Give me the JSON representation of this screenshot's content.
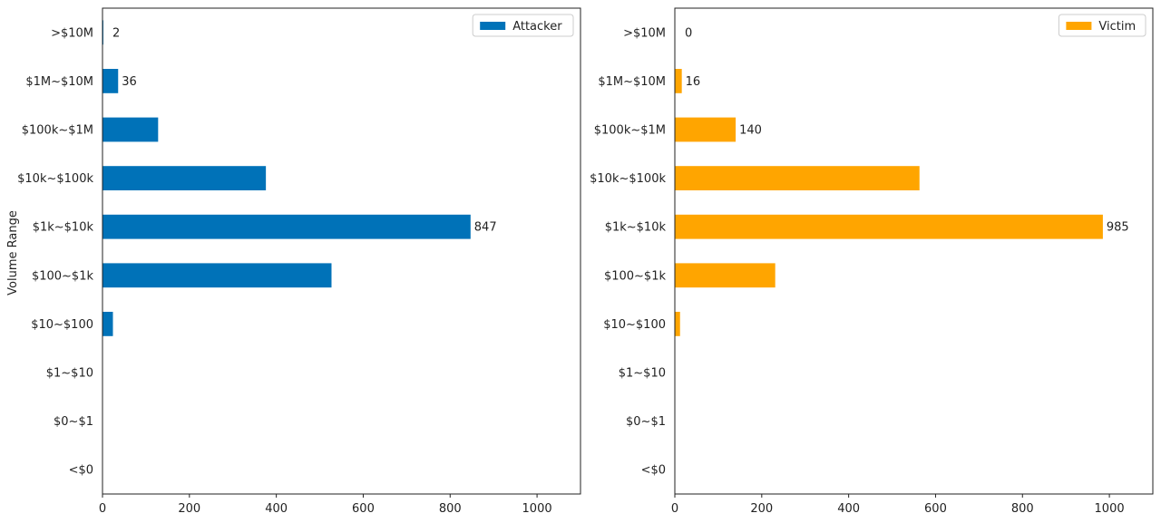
{
  "ylabel": "Volume Range",
  "chart_data": [
    {
      "type": "bar",
      "orientation": "horizontal",
      "categories": [
        "<$0",
        "$0~$1",
        "$1~$10",
        "$10~$100",
        "$100~$1k",
        "$1k~$10k",
        "$10k~$100k",
        "$100k~$1M",
        "$1M~$10M",
        ">$10M"
      ],
      "series": [
        {
          "name": "Attacker",
          "values": [
            0,
            0,
            0,
            24,
            527,
            847,
            376,
            128,
            36,
            2
          ]
        }
      ],
      "data_labels": [
        {
          "category": ">$10M",
          "text": "2"
        },
        {
          "category": "$1M~$10M",
          "text": "36"
        },
        {
          "category": "$1k~$10k",
          "text": "847"
        }
      ],
      "color": "#0072B8",
      "xlim": [
        0,
        1100
      ],
      "xticks": [
        0,
        200,
        400,
        600,
        800,
        1000
      ],
      "ylabel": "Volume Range",
      "legend": "top-right",
      "grid": false
    },
    {
      "type": "bar",
      "orientation": "horizontal",
      "categories": [
        "<$0",
        "$0~$1",
        "$1~$10",
        "$10~$100",
        "$100~$1k",
        "$1k~$10k",
        "$10k~$100k",
        "$100k~$1M",
        "$1M~$10M",
        ">$10M"
      ],
      "series": [
        {
          "name": "Victim",
          "values": [
            0,
            0,
            0,
            12,
            231,
            985,
            563,
            140,
            16,
            0
          ]
        }
      ],
      "data_labels": [
        {
          "category": ">$10M",
          "text": "0"
        },
        {
          "category": "$1M~$10M",
          "text": "16"
        },
        {
          "category": "$100k~$1M",
          "text": "140"
        },
        {
          "category": "$1k~$10k",
          "text": "985"
        }
      ],
      "color": "#FFA500",
      "xlim": [
        0,
        1100
      ],
      "xticks": [
        0,
        200,
        400,
        600,
        800,
        1000
      ],
      "ylabel": "",
      "legend": "top-right",
      "grid": false
    }
  ]
}
